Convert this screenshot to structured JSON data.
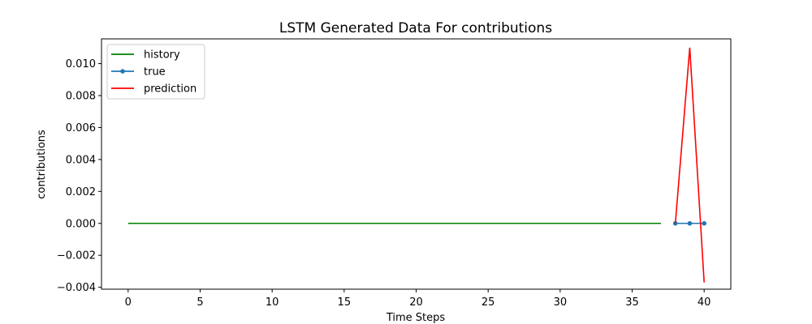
{
  "chart_data": {
    "type": "line",
    "title": "LSTM Generated Data For contributions",
    "xlabel": "Time Steps",
    "ylabel": "contributions",
    "xlim": [
      -1.85,
      41.85
    ],
    "ylim": [
      -0.00412,
      0.01155
    ],
    "xticks": [
      0,
      5,
      10,
      15,
      20,
      25,
      30,
      35,
      40
    ],
    "yticks": [
      -0.004,
      -0.002,
      0.0,
      0.002,
      0.004,
      0.006,
      0.008,
      0.01
    ],
    "ytick_labels": [
      "−0.004",
      "−0.002",
      "0.000",
      "0.002",
      "0.004",
      "0.006",
      "0.008",
      "0.010"
    ],
    "grid": false,
    "legend_position": "top-left",
    "series": [
      {
        "name": "history",
        "color": "#008000",
        "marker": false,
        "x": [
          0,
          1,
          2,
          3,
          4,
          5,
          6,
          7,
          8,
          9,
          10,
          11,
          12,
          13,
          14,
          15,
          16,
          17,
          18,
          19,
          20,
          21,
          22,
          23,
          24,
          25,
          26,
          27,
          28,
          29,
          30,
          31,
          32,
          33,
          34,
          35,
          36,
          37
        ],
        "y": [
          0,
          0,
          0,
          0,
          0,
          0,
          0,
          0,
          0,
          0,
          0,
          0,
          0,
          0,
          0,
          0,
          0,
          0,
          0,
          0,
          0,
          0,
          0,
          0,
          0,
          0,
          0,
          0,
          0,
          0,
          0,
          0,
          0,
          0,
          0,
          0,
          0,
          0
        ]
      },
      {
        "name": "true",
        "color": "#1f77b4",
        "marker": true,
        "x": [
          38,
          39,
          40
        ],
        "y": [
          0,
          0,
          0
        ]
      },
      {
        "name": "prediction",
        "color": "#ff0000",
        "marker": false,
        "x": [
          38,
          39,
          40
        ],
        "y": [
          0.0,
          0.011,
          -0.0037
        ]
      }
    ]
  }
}
